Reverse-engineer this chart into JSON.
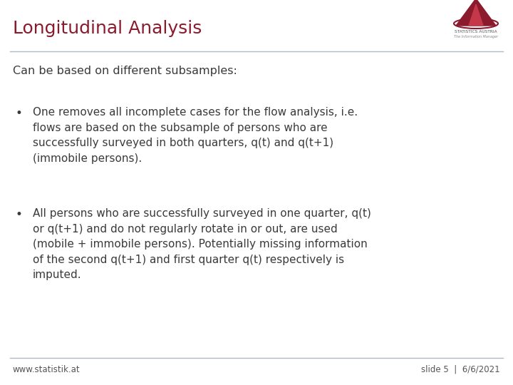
{
  "title": "Longitudinal Analysis",
  "title_color": "#8B1A2D",
  "title_fontsize": 18,
  "subtitle": "Can be based on different subsamples:",
  "subtitle_fontsize": 11.5,
  "bg_color": "#FFFFFF",
  "header_line_color": "#B0B8C8",
  "footer_line_color": "#B0B8C8",
  "footer_left": "www.statistik.at",
  "footer_right": "slide 5  |  6/6/2021",
  "footer_fontsize": 8.5,
  "bullet_color": "#3A3A3A",
  "bullet_fontsize": 11,
  "bullet1": "One removes all incomplete cases for the flow analysis, i.e.\nflows are based on the subsample of persons who are\nsuccessfully surveyed in both quarters, q(t) and q(t+1)\n(immobile persons).",
  "bullet2": "All persons who are successfully surveyed in one quarter, q(t)\nor q(t+1) and do not regularly rotate in or out, are used\n(mobile + immobile persons). Potentially missing information\nof the second q(t+1) and first quarter q(t) respectively is\nimputed."
}
